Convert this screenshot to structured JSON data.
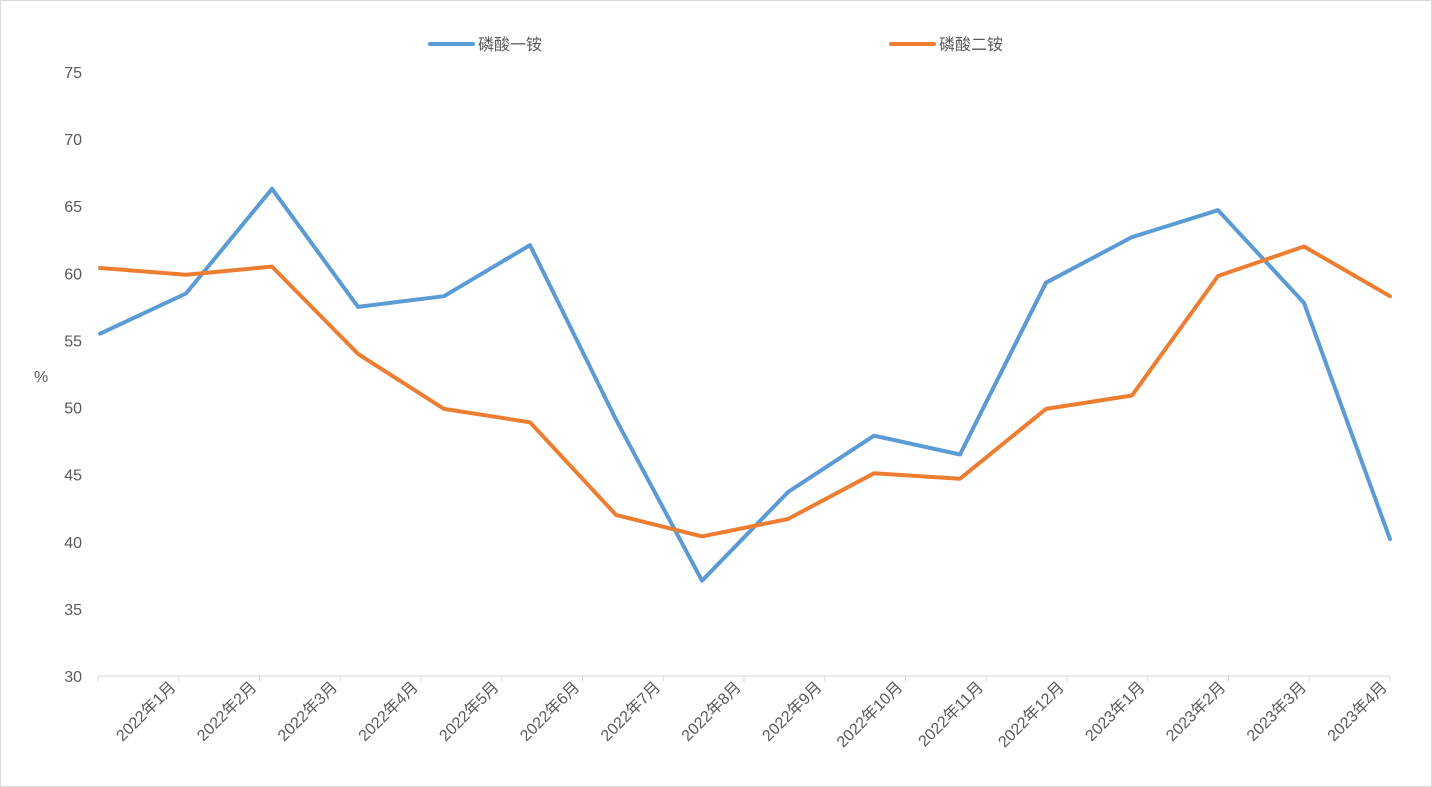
{
  "chart_data": {
    "type": "line",
    "title": "",
    "xlabel": "",
    "ylabel": "%",
    "ylim": [
      30,
      75
    ],
    "yticks": [
      30,
      35,
      40,
      45,
      50,
      55,
      60,
      65,
      70,
      75
    ],
    "grid": false,
    "legend_position": "top",
    "categories": [
      "2022年1月",
      "2022年2月",
      "2022年3月",
      "2022年4月",
      "2022年5月",
      "2022年6月",
      "2022年7月",
      "2022年8月",
      "2022年9月",
      "2022年10月",
      "2022年11月",
      "2022年12月",
      "2023年1月",
      "2023年2月",
      "2023年3月",
      "2023年4月"
    ],
    "series": [
      {
        "name": "磷酸一铵",
        "color": "#5b9bd5",
        "values": [
          55.5,
          58.5,
          66.3,
          57.5,
          58.3,
          62.1,
          49.1,
          37.1,
          43.7,
          47.9,
          46.5,
          59.3,
          62.7,
          64.7,
          57.8,
          40.2
        ]
      },
      {
        "name": "磷酸二铵",
        "color": "#ed7d31",
        "values": [
          60.4,
          59.9,
          60.5,
          54.0,
          49.9,
          48.9,
          42.0,
          40.4,
          41.7,
          45.1,
          44.7,
          49.9,
          50.9,
          59.8,
          62.0,
          58.3
        ]
      }
    ]
  }
}
